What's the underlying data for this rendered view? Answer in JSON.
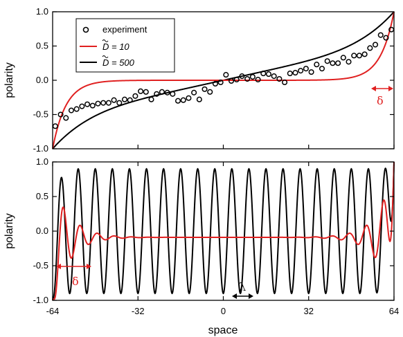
{
  "chart_data": [
    {
      "type": "scatter",
      "ylabel": "polarity",
      "xlabel": "",
      "xlim": [
        -64,
        64
      ],
      "ylim": [
        -1.0,
        1.0
      ],
      "yticks": [
        "-1.0",
        "-0.5",
        "0.0",
        "0.5",
        "1.0"
      ],
      "legend": {
        "placement": "top-left",
        "entries": [
          {
            "label": "experiment",
            "marker": "circle",
            "color": "#000000"
          },
          {
            "label": "D = 10",
            "color": "#e02020"
          },
          {
            "label": "D = 500",
            "color": "#000000"
          }
        ]
      },
      "experiment": {
        "x": [
          -63,
          -61,
          -59,
          -57,
          -55,
          -53,
          -51,
          -49,
          -47,
          -45,
          -43,
          -41,
          -39,
          -37,
          -35,
          -33,
          -31,
          -29,
          -27,
          -25,
          -23,
          -21,
          -19,
          -17,
          -15,
          -13,
          -11,
          -9,
          -7,
          -5,
          -3,
          -1,
          1,
          3,
          5,
          7,
          9,
          11,
          13,
          15,
          17,
          19,
          21,
          23,
          25,
          27,
          29,
          31,
          33,
          35,
          37,
          39,
          41,
          43,
          45,
          47,
          49,
          51,
          53,
          55,
          57,
          59,
          61,
          63
        ],
        "y": [
          -0.67,
          -0.5,
          -0.55,
          -0.44,
          -0.42,
          -0.38,
          -0.35,
          -0.37,
          -0.34,
          -0.33,
          -0.33,
          -0.29,
          -0.33,
          -0.28,
          -0.29,
          -0.23,
          -0.16,
          -0.17,
          -0.28,
          -0.2,
          -0.17,
          -0.18,
          -0.2,
          -0.3,
          -0.29,
          -0.26,
          -0.18,
          -0.28,
          -0.13,
          -0.17,
          -0.05,
          -0.03,
          0.08,
          -0.01,
          0.01,
          0.06,
          0.02,
          0.05,
          0.01,
          0.1,
          0.09,
          0.06,
          0.02,
          -0.03,
          0.1,
          0.11,
          0.14,
          0.17,
          0.12,
          0.23,
          0.17,
          0.28,
          0.25,
          0.25,
          0.33,
          0.27,
          0.36,
          0.36,
          0.38,
          0.47,
          0.52,
          0.66,
          0.62,
          0.74
        ]
      },
      "series": [
        {
          "label": "D = 10",
          "model": "bulk",
          "delta": 5,
          "color": "#e02020"
        },
        {
          "label": "D = 500",
          "model": "smooth",
          "color": "#000000"
        }
      ],
      "annotations": [
        {
          "text": "δ",
          "color": "#e02020",
          "arrow_x": [
            58,
            64
          ]
        }
      ]
    },
    {
      "type": "line",
      "xlabel": "space",
      "ylabel": "polarity",
      "xlim": [
        -64,
        64
      ],
      "ylim": [
        -1.0,
        1.0
      ],
      "xticks": [
        "-64",
        "-32",
        "0",
        "32",
        "64"
      ],
      "yticks": [
        "-1.0",
        "-0.5",
        "0.0",
        "0.5",
        "1.0"
      ],
      "series": [
        {
          "model": "oscillation",
          "period": 6.4,
          "amplitude": 0.9,
          "color": "#000000"
        },
        {
          "model": "damped",
          "baseline": -0.09,
          "amplitude": 0.5,
          "period": 6.4,
          "decay": 6,
          "color": "#e02020"
        }
      ],
      "annotations": [
        {
          "text": "δ",
          "color": "#e02020",
          "arrow_x": [
            -64,
            -51
          ]
        },
        {
          "text": "λ",
          "color": "#000000",
          "arrow_x": [
            1,
            7
          ]
        }
      ]
    }
  ]
}
